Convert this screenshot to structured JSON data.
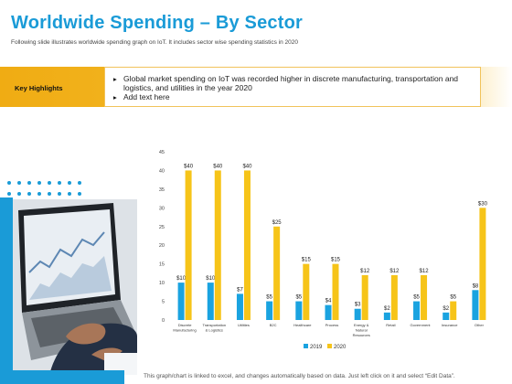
{
  "header": {
    "title": "Worldwide Spending – By Sector",
    "subtitle": "Following slide illustrates worldwide spending graph on IoT. It includes sector wise spending statistics in 2020"
  },
  "highlights": {
    "label": "Key Highlights",
    "bullet_icon": "triangle-bullet-icon",
    "items": [
      "Global market spending on IoT was recorded higher in discrete manufacturing, transportation and logistics, and utilities in the year 2020",
      "Add text here"
    ]
  },
  "footnote": "This graph/chart is linked to excel, and changes automatically based on data. Just left click on it and select “Edit Data”.",
  "colors": {
    "accent": "#1a9bd7",
    "highlight": "#f0ac13",
    "series_2019": "#1aa3e0",
    "series_2020": "#f6c419"
  },
  "chart_data": {
    "type": "bar",
    "title": "",
    "xlabel": "",
    "ylabel": "",
    "ylim": [
      0,
      45
    ],
    "yticks": [
      "0",
      "5",
      "10",
      "15",
      "20",
      "25",
      "30",
      "35",
      "40",
      "45"
    ],
    "grid": false,
    "legend_position": "bottom",
    "categories": [
      "Discrete Manufacturing",
      "Transportation & Logistics",
      "Utilities",
      "B2C",
      "Healthcare",
      "Process",
      "Energy & Natural Resources",
      "Retail",
      "Government",
      "Insurance",
      "Other"
    ],
    "category_lines": [
      [
        "Discrete",
        "Manufacturing"
      ],
      [
        "Transportation",
        "& Logistics"
      ],
      [
        "Utilities"
      ],
      [
        "B2C"
      ],
      [
        "Healthcare"
      ],
      [
        "Process"
      ],
      [
        "Energy &",
        "Natural",
        "Resources"
      ],
      [
        "Retail"
      ],
      [
        "Government"
      ],
      [
        "Insurance"
      ],
      [
        "Other"
      ]
    ],
    "series": [
      {
        "name": "2019",
        "values": [
          10,
          10,
          7,
          5,
          5,
          4,
          3,
          2,
          5,
          2,
          8
        ],
        "labels": [
          "$10",
          "$10",
          "$7",
          "$5",
          "$5",
          "$4",
          "$3",
          "$2",
          "$5",
          "$2",
          "$8"
        ]
      },
      {
        "name": "2020",
        "values": [
          40,
          40,
          40,
          25,
          15,
          15,
          12,
          12,
          12,
          5,
          30
        ],
        "labels": [
          "$40",
          "$40",
          "$40",
          "$25",
          "$15",
          "$15",
          "$12",
          "$12",
          "$12",
          "$5",
          "$30"
        ]
      }
    ]
  }
}
